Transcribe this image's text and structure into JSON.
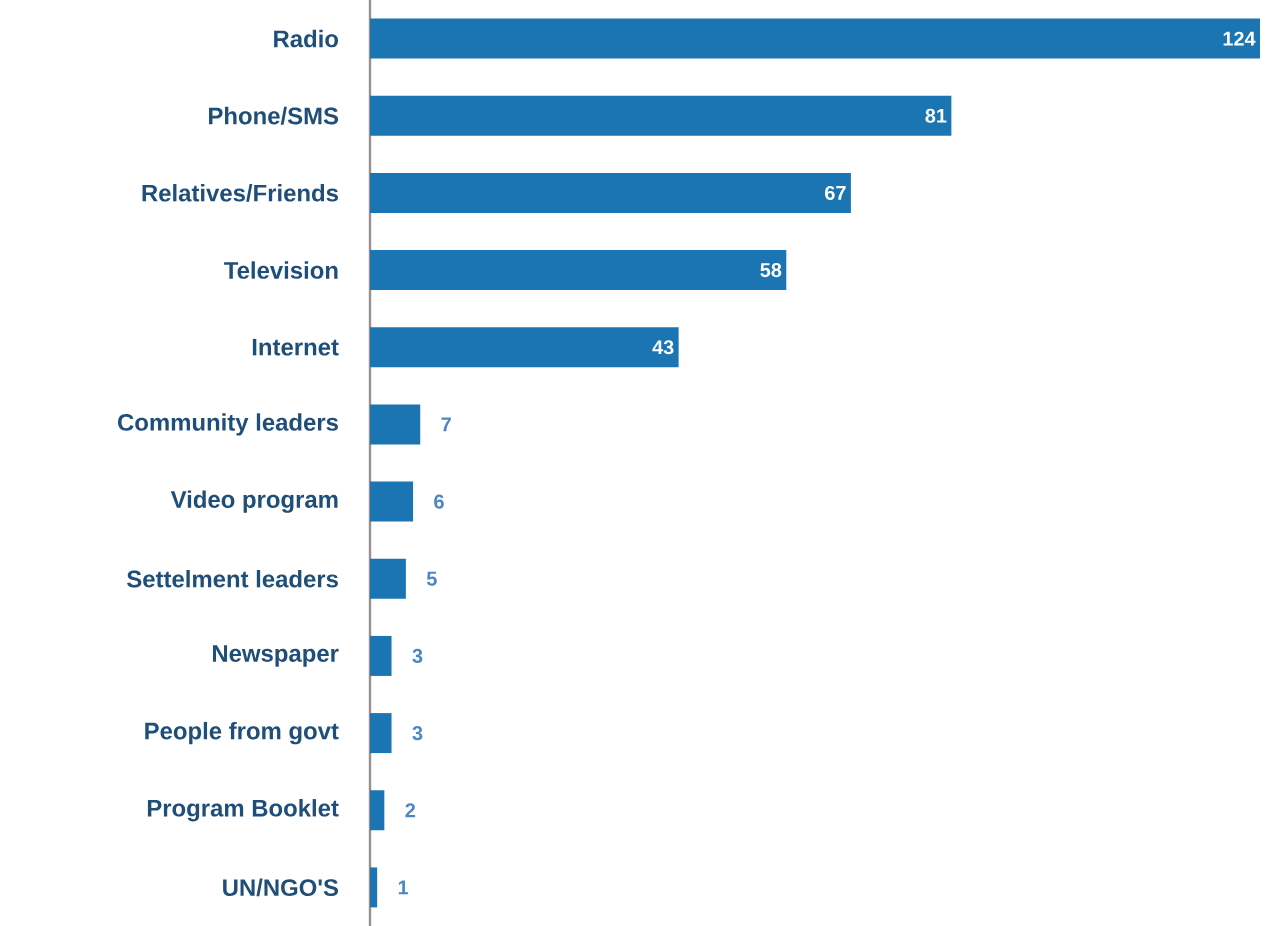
{
  "chart_data": {
    "type": "bar",
    "orientation": "horizontal",
    "data_labels": true,
    "categories": [
      "Radio",
      "Phone/SMS",
      "Relatives/Friends",
      "Television",
      "Internet",
      "Community leaders",
      "Video program",
      "Settelment leaders",
      "Newspaper",
      "People from govt",
      "Program Booklet",
      "UN/NGO'S"
    ],
    "values": [
      124,
      81,
      67,
      58,
      43,
      7,
      6,
      5,
      3,
      3,
      2,
      1
    ],
    "color": "#1c75b3"
  }
}
